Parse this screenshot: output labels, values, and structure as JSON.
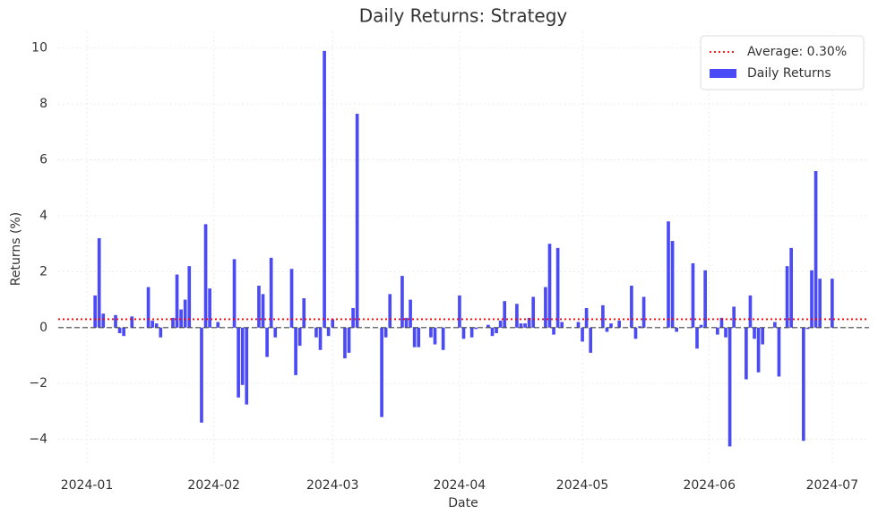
{
  "chart_data": {
    "type": "bar",
    "title": "Daily Returns: Strategy",
    "xlabel": "Date",
    "ylabel": "Returns (%)",
    "xlim": [
      -7,
      191
    ],
    "xticks": [
      {
        "value": 0,
        "label": "2024-01"
      },
      {
        "value": 31,
        "label": "2024-02"
      },
      {
        "value": 60,
        "label": "2024-03"
      },
      {
        "value": 91,
        "label": "2024-04"
      },
      {
        "value": 121,
        "label": "2024-05"
      },
      {
        "value": 152,
        "label": "2024-06"
      },
      {
        "value": 182,
        "label": "2024-07"
      }
    ],
    "ylim": [
      -4.94,
      10.6
    ],
    "yticks": [
      {
        "value": -4,
        "label": "−4"
      },
      {
        "value": -2,
        "label": "−2"
      },
      0,
      2,
      4,
      6,
      8,
      10
    ],
    "grid": true,
    "legend": "upper right",
    "series": [
      {
        "name": "Daily Returns",
        "color": "#4a4af6",
        "x": [
          2,
          3,
          4,
          7,
          8,
          9,
          11,
          15,
          16,
          17,
          18,
          21,
          22,
          23,
          24,
          25,
          28,
          29,
          30,
          32,
          36,
          37,
          38,
          39,
          42,
          43,
          44,
          45,
          46,
          50,
          51,
          52,
          53,
          56,
          57,
          58,
          59,
          60,
          63,
          64,
          65,
          66,
          72,
          73,
          74,
          77,
          78,
          79,
          80,
          81,
          84,
          85,
          87,
          91,
          92,
          94,
          95,
          98,
          99,
          100,
          101,
          102,
          105,
          106,
          107,
          108,
          109,
          112,
          113,
          114,
          115,
          116,
          120,
          121,
          122,
          123,
          126,
          127,
          128,
          130,
          133,
          134,
          135,
          136,
          142,
          143,
          144,
          148,
          149,
          150,
          151,
          154,
          155,
          156,
          157,
          158,
          161,
          162,
          163,
          164,
          165,
          168,
          169,
          171,
          172,
          175,
          176,
          177,
          178,
          179,
          182
        ],
        "values": [
          1.15,
          3.2,
          0.5,
          0.45,
          -0.2,
          -0.3,
          0.4,
          1.45,
          0.25,
          0.15,
          -0.35,
          0.35,
          1.9,
          0.65,
          1.0,
          2.2,
          -3.4,
          3.7,
          1.4,
          0.2,
          2.45,
          -2.5,
          -2.05,
          -2.75,
          1.5,
          1.2,
          -1.05,
          2.5,
          -0.35,
          2.1,
          -1.7,
          -0.65,
          1.05,
          -0.35,
          -0.8,
          9.9,
          -0.3,
          0.3,
          -1.1,
          -0.9,
          0.7,
          7.65,
          -3.2,
          -0.35,
          1.2,
          1.85,
          0.35,
          1.0,
          -0.7,
          -0.7,
          -0.35,
          -0.6,
          -0.8,
          1.15,
          -0.4,
          -0.35,
          -0.05,
          0.1,
          -0.3,
          -0.2,
          0.25,
          0.95,
          0.85,
          0.15,
          0.15,
          0.35,
          1.1,
          1.45,
          3.0,
          -0.25,
          2.85,
          0.2,
          0.2,
          -0.5,
          0.7,
          -0.9,
          0.8,
          -0.15,
          0.15,
          0.25,
          1.5,
          -0.4,
          0.05,
          1.1,
          3.8,
          3.1,
          -0.15,
          2.3,
          -0.75,
          0.1,
          2.05,
          -0.25,
          0.35,
          -0.35,
          -4.25,
          0.75,
          -1.85,
          1.15,
          -0.4,
          -1.6,
          -0.6,
          0.2,
          -1.75,
          2.2,
          2.85,
          -4.05,
          -0.05,
          2.05,
          5.6,
          1.75,
          1.75
        ]
      }
    ],
    "hlines": [
      {
        "name": "Average: 0.30%",
        "value": 0.3,
        "color": "#ff0000",
        "style": "dotted"
      },
      {
        "value": 0,
        "color": "#444444",
        "style": "dashed"
      }
    ]
  }
}
